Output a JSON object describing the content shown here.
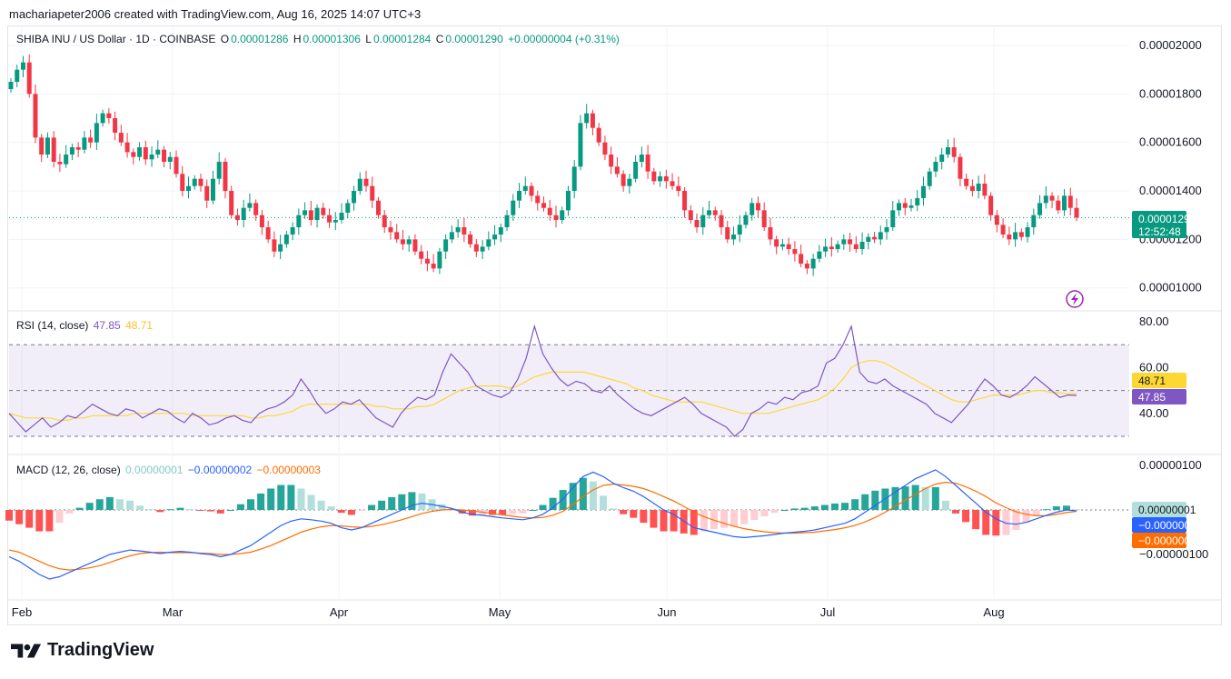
{
  "header": {
    "created_by": "machariapeter2006 created with TradingView.com, Aug 16, 2025 14:07 UTC+3"
  },
  "legend": {
    "symbol": "SHIBA INU / US Dollar · 1D · COINBASE",
    "open_label": "O",
    "open": "0.00001286",
    "high_label": "H",
    "high": "0.00001306",
    "low_label": "L",
    "low": "0.00001284",
    "close_label": "C",
    "close": "0.00001290",
    "change": "+0.00000004 (+0.31%)"
  },
  "rsi_legend": {
    "label": "RSI (14, close)",
    "rsi": "47.85",
    "ma": "48.71"
  },
  "macd_legend": {
    "label": "MACD (12, 26, close)",
    "hist": "0.00000001",
    "macd": "−0.00000002",
    "signal": "−0.00000003"
  },
  "price_badge": {
    "price": "0.00001290",
    "countdown": "12:52:48"
  },
  "brand": {
    "name": "TradingView"
  },
  "colors": {
    "up": "#089981",
    "down": "#f23645",
    "rsi": "#7e57c2",
    "rsi_ma": "#fdd835",
    "macd": "#2962ff",
    "signal": "#ff6d00",
    "hist_up": "#26a69a",
    "hist_up_light": "#b2dfdb",
    "hist_down": "#ff5252",
    "hist_down_light": "#ffcdd2"
  },
  "chart_data": [
    {
      "type": "candlestick",
      "title": "SHIBA INU / US Dollar · 1D · COINBASE",
      "x_labels": [
        "Feb",
        "Mar",
        "Apr",
        "May",
        "Jun",
        "Jul",
        "Aug"
      ],
      "y_ticks": [
        "0.00002000",
        "0.00001800",
        "0.00001600",
        "0.00001400",
        "0.00001200",
        "0.00001000"
      ],
      "ylim": [
        9.2e-06,
        2.1e-05
      ],
      "close_series": [
        1.85,
        1.9,
        1.93,
        1.8,
        1.62,
        1.55,
        1.62,
        1.52,
        1.51,
        1.55,
        1.58,
        1.57,
        1.62,
        1.6,
        1.68,
        1.72,
        1.7,
        1.64,
        1.6,
        1.56,
        1.54,
        1.58,
        1.53,
        1.55,
        1.57,
        1.52,
        1.54,
        1.47,
        1.4,
        1.42,
        1.45,
        1.42,
        1.36,
        1.45,
        1.52,
        1.4,
        1.3,
        1.28,
        1.33,
        1.35,
        1.3,
        1.25,
        1.2,
        1.15,
        1.18,
        1.22,
        1.25,
        1.3,
        1.32,
        1.28,
        1.33,
        1.3,
        1.27,
        1.28,
        1.31,
        1.35,
        1.4,
        1.45,
        1.42,
        1.36,
        1.3,
        1.25,
        1.23,
        1.2,
        1.18,
        1.2,
        1.15,
        1.12,
        1.1,
        1.08,
        1.15,
        1.2,
        1.23,
        1.25,
        1.22,
        1.18,
        1.15,
        1.17,
        1.2,
        1.22,
        1.25,
        1.3,
        1.36,
        1.4,
        1.42,
        1.38,
        1.35,
        1.33,
        1.3,
        1.28,
        1.32,
        1.4,
        1.5,
        1.68,
        1.72,
        1.66,
        1.6,
        1.55,
        1.5,
        1.47,
        1.42,
        1.45,
        1.52,
        1.55,
        1.48,
        1.44,
        1.46,
        1.44,
        1.42,
        1.4,
        1.32,
        1.28,
        1.25,
        1.3,
        1.32,
        1.3,
        1.25,
        1.2,
        1.22,
        1.26,
        1.3,
        1.35,
        1.32,
        1.25,
        1.2,
        1.17,
        1.18,
        1.16,
        1.14,
        1.1,
        1.08,
        1.12,
        1.15,
        1.17,
        1.16,
        1.18,
        1.2,
        1.18,
        1.16,
        1.19,
        1.21,
        1.2,
        1.23,
        1.25,
        1.32,
        1.35,
        1.33,
        1.34,
        1.37,
        1.42,
        1.48,
        1.52,
        1.55,
        1.58,
        1.54,
        1.45,
        1.42,
        1.4,
        1.43,
        1.38,
        1.3,
        1.26,
        1.22,
        1.2,
        1.23,
        1.21,
        1.25,
        1.3,
        1.35,
        1.38,
        1.36,
        1.32,
        1.38,
        1.33,
        1.29
      ]
    },
    {
      "type": "line",
      "title": "RSI (14, close)",
      "y_ticks": [
        "80.00",
        "60.00",
        "40.00"
      ],
      "bands": [
        70,
        50,
        30
      ],
      "ylim": [
        25,
        82
      ],
      "rsi_series": [
        40,
        36,
        32,
        35,
        38,
        34,
        36,
        39,
        38,
        41,
        44,
        42,
        40,
        39,
        42,
        41,
        38,
        40,
        42,
        41,
        38,
        36,
        40,
        38,
        35,
        36,
        38,
        39,
        37,
        36,
        40,
        42,
        43,
        45,
        48,
        55,
        50,
        44,
        40,
        42,
        45,
        44,
        46,
        42,
        38,
        36,
        34,
        40,
        44,
        47,
        46,
        48,
        58,
        66,
        62,
        58,
        52,
        50,
        48,
        47,
        49,
        55,
        64,
        78,
        66,
        60,
        55,
        52,
        54,
        53,
        50,
        49,
        52,
        48,
        45,
        42,
        40,
        39,
        41,
        43,
        45,
        47,
        44,
        40,
        38,
        36,
        34,
        30,
        33,
        40,
        42,
        45,
        44,
        47,
        46,
        49,
        50,
        52,
        62,
        64,
        70,
        78,
        58,
        54,
        53,
        55,
        52,
        50,
        48,
        46,
        44,
        40,
        38,
        36,
        40,
        44,
        50,
        55,
        52,
        48,
        47,
        49,
        52,
        56,
        53,
        50,
        47,
        48,
        47.85
      ],
      "ma_series": [
        40,
        39,
        38,
        38,
        38,
        38,
        37,
        37,
        38,
        38,
        39,
        39,
        39,
        39,
        39,
        40,
        40,
        40,
        40,
        40,
        40,
        40,
        39,
        39,
        39,
        39,
        39,
        39,
        39,
        38,
        38,
        39,
        39,
        40,
        41,
        43,
        44,
        44,
        44,
        44,
        44,
        44,
        44,
        44,
        43,
        43,
        42,
        42,
        42,
        43,
        43,
        44,
        46,
        48,
        50,
        51,
        52,
        52,
        52,
        52,
        51,
        52,
        54,
        56,
        57,
        58,
        58,
        58,
        58,
        58,
        57,
        56,
        55,
        54,
        53,
        51,
        50,
        48,
        47,
        46,
        45,
        45,
        45,
        45,
        44,
        43,
        42,
        41,
        40,
        40,
        40,
        40,
        41,
        42,
        43,
        44,
        45,
        46,
        48,
        51,
        55,
        60,
        62,
        63,
        63,
        62,
        60,
        58,
        56,
        54,
        52,
        50,
        48,
        46,
        45,
        45,
        46,
        47,
        48,
        48,
        48,
        48,
        49,
        50,
        50,
        49,
        49,
        48.5,
        48.71
      ]
    },
    {
      "type": "bar",
      "title": "MACD (12, 26, close)",
      "y_ticks": [
        "0.00000100",
        "−0.00000100"
      ],
      "ylim": [
        -1.7e-06,
        1.1e-06
      ],
      "macd_series": [
        -1.05,
        -1.15,
        -1.3,
        -1.45,
        -1.55,
        -1.5,
        -1.4,
        -1.3,
        -1.2,
        -1.1,
        -1.0,
        -0.95,
        -0.9,
        -0.92,
        -0.95,
        -0.98,
        -0.95,
        -0.93,
        -0.95,
        -0.98,
        -1.0,
        -1.05,
        -1.0,
        -0.9,
        -0.8,
        -0.65,
        -0.5,
        -0.35,
        -0.25,
        -0.2,
        -0.22,
        -0.25,
        -0.3,
        -0.4,
        -0.45,
        -0.4,
        -0.3,
        -0.2,
        -0.1,
        0.0,
        0.1,
        0.15,
        0.12,
        0.08,
        0.03,
        -0.05,
        -0.1,
        -0.12,
        -0.15,
        -0.18,
        -0.2,
        -0.22,
        -0.18,
        -0.1,
        0.05,
        0.25,
        0.5,
        0.75,
        0.85,
        0.75,
        0.6,
        0.5,
        0.42,
        0.3,
        0.15,
        0.0,
        -0.1,
        -0.25,
        -0.4,
        -0.45,
        -0.5,
        -0.55,
        -0.6,
        -0.62,
        -0.6,
        -0.58,
        -0.55,
        -0.52,
        -0.5,
        -0.48,
        -0.45,
        -0.4,
        -0.35,
        -0.3,
        -0.2,
        -0.05,
        0.1,
        0.25,
        0.4,
        0.55,
        0.7,
        0.8,
        0.9,
        0.75,
        0.55,
        0.35,
        0.15,
        -0.05,
        -0.2,
        -0.3,
        -0.32,
        -0.28,
        -0.2,
        -0.12,
        -0.05,
        0.0,
        -0.02
      ],
      "signal_series": [
        -0.9,
        -0.95,
        -1.05,
        -1.15,
        -1.25,
        -1.32,
        -1.35,
        -1.33,
        -1.3,
        -1.25,
        -1.18,
        -1.1,
        -1.03,
        -0.98,
        -0.96,
        -0.95,
        -0.96,
        -0.96,
        -0.96,
        -0.97,
        -0.98,
        -1.0,
        -1.0,
        -0.98,
        -0.95,
        -0.88,
        -0.8,
        -0.7,
        -0.6,
        -0.5,
        -0.43,
        -0.38,
        -0.35,
        -0.36,
        -0.38,
        -0.39,
        -0.37,
        -0.33,
        -0.28,
        -0.22,
        -0.15,
        -0.08,
        -0.03,
        0.0,
        0.01,
        0.0,
        -0.02,
        -0.05,
        -0.08,
        -0.11,
        -0.14,
        -0.17,
        -0.18,
        -0.17,
        -0.12,
        -0.03,
        0.12,
        0.3,
        0.45,
        0.55,
        0.58,
        0.56,
        0.53,
        0.48,
        0.4,
        0.3,
        0.2,
        0.08,
        -0.05,
        -0.15,
        -0.23,
        -0.3,
        -0.37,
        -0.42,
        -0.46,
        -0.49,
        -0.51,
        -0.52,
        -0.52,
        -0.51,
        -0.5,
        -0.47,
        -0.44,
        -0.4,
        -0.35,
        -0.27,
        -0.17,
        -0.05,
        0.08,
        0.22,
        0.35,
        0.48,
        0.58,
        0.62,
        0.6,
        0.52,
        0.42,
        0.3,
        0.16,
        0.05,
        -0.04,
        -0.1,
        -0.13,
        -0.13,
        -0.1,
        -0.06,
        -0.03
      ]
    }
  ]
}
